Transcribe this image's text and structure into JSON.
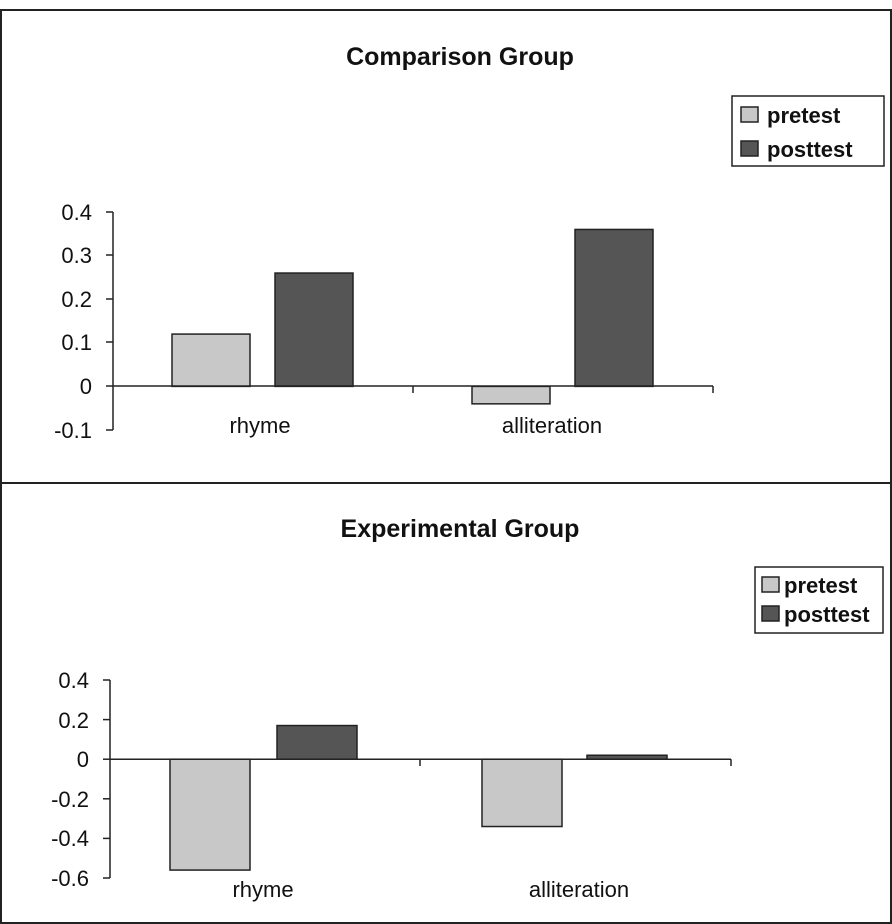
{
  "chart_data": [
    {
      "type": "bar",
      "title": "Comparison Group",
      "categories": [
        "rhyme",
        "alliteration"
      ],
      "series": [
        {
          "name": "pretest",
          "values": [
            0.12,
            -0.04
          ],
          "color": "#c8c8c8"
        },
        {
          "name": "posttest",
          "values": [
            0.26,
            0.36
          ],
          "color": "#555555"
        }
      ],
      "yticks": [
        "0.4",
        "0.3",
        "0.2",
        "0.1",
        "0",
        "-0.1"
      ],
      "ylim": [
        -0.1,
        0.4
      ],
      "grid": false,
      "legend_position": "top-right"
    },
    {
      "type": "bar",
      "title": "Experimental Group",
      "categories": [
        "rhyme",
        "alliteration"
      ],
      "series": [
        {
          "name": "pretest",
          "values": [
            -0.56,
            -0.34
          ],
          "color": "#c8c8c8"
        },
        {
          "name": "posttest",
          "values": [
            0.17,
            0.02
          ],
          "color": "#555555"
        }
      ],
      "yticks": [
        "0.4",
        "0.2",
        "0",
        "-0.2",
        "-0.4",
        "-0.6"
      ],
      "ylim": [
        -0.6,
        0.4
      ],
      "grid": false,
      "legend_position": "top-right"
    }
  ]
}
